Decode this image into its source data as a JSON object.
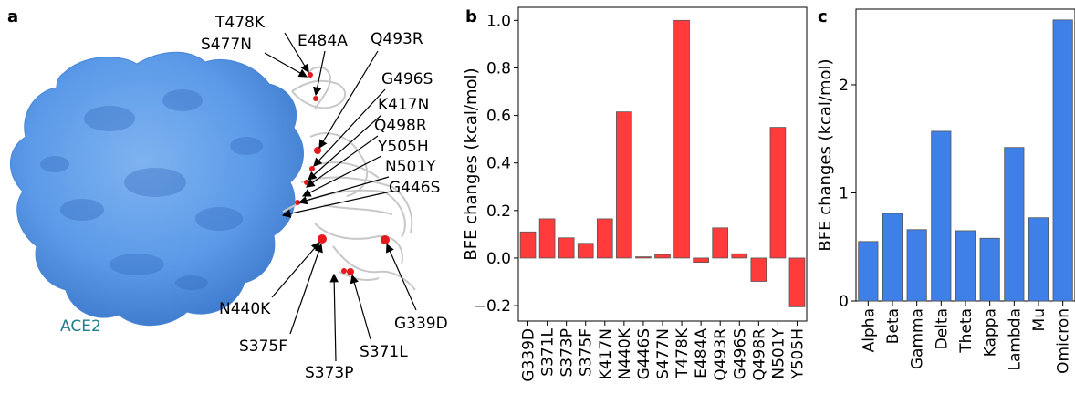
{
  "panel_a": {
    "letter": "a",
    "receptor_label": "ACE2",
    "mutation_labels": [
      "T478K",
      "S477N",
      "E484A",
      "Q493R",
      "G496S",
      "K417N",
      "Q498R",
      "Y505H",
      "N501Y",
      "G446S",
      "N440K",
      "S375F",
      "S373P",
      "S371L",
      "G339D"
    ],
    "colors": {
      "receptor": "#5b9ae8",
      "receptor_dark": "#3f7fd0",
      "ribbon": "#c8c8c8",
      "mutation": "#e41a1c",
      "receptor_text": "#1f7f8f"
    }
  },
  "chart_data": [
    {
      "panel": "b",
      "type": "bar",
      "categories": [
        "G339D",
        "S371L",
        "S373P",
        "S375F",
        "K417N",
        "N440K",
        "G446S",
        "S477N",
        "T478K",
        "E484A",
        "Q493R",
        "G496S",
        "Q498R",
        "N501Y",
        "Y505H"
      ],
      "values": [
        0.11,
        0.165,
        0.085,
        0.062,
        0.165,
        0.615,
        0.005,
        0.015,
        1.0,
        -0.018,
        0.127,
        0.018,
        -0.098,
        0.55,
        -0.205
      ],
      "ylabel": "BFE changes (kcal/mol)",
      "ylim": [
        -0.265,
        1.055
      ],
      "yticks": [
        -0.2,
        0.0,
        0.2,
        0.4,
        0.6,
        0.8,
        1.0
      ],
      "ytick_labels": [
        "−0.2",
        "0.0",
        "0.2",
        "0.4",
        "0.6",
        "0.8",
        "1.0"
      ],
      "color": "#ff3b3b",
      "grid": false
    },
    {
      "panel": "c",
      "type": "bar",
      "categories": [
        "Alpha",
        "Beta",
        "Gamma",
        "Delta",
        "Theta",
        "Kappa",
        "Lambda",
        "Mu",
        "Omicron"
      ],
      "values": [
        0.55,
        0.81,
        0.66,
        1.57,
        0.65,
        0.58,
        1.42,
        0.77,
        2.6
      ],
      "ylabel": "BFE changes (kcal/mol)",
      "ylim": [
        0,
        2.7
      ],
      "yticks": [
        0,
        1,
        2
      ],
      "ytick_labels": [
        "0",
        "1",
        "2"
      ],
      "color": "#3f7fe8",
      "grid": false
    }
  ]
}
